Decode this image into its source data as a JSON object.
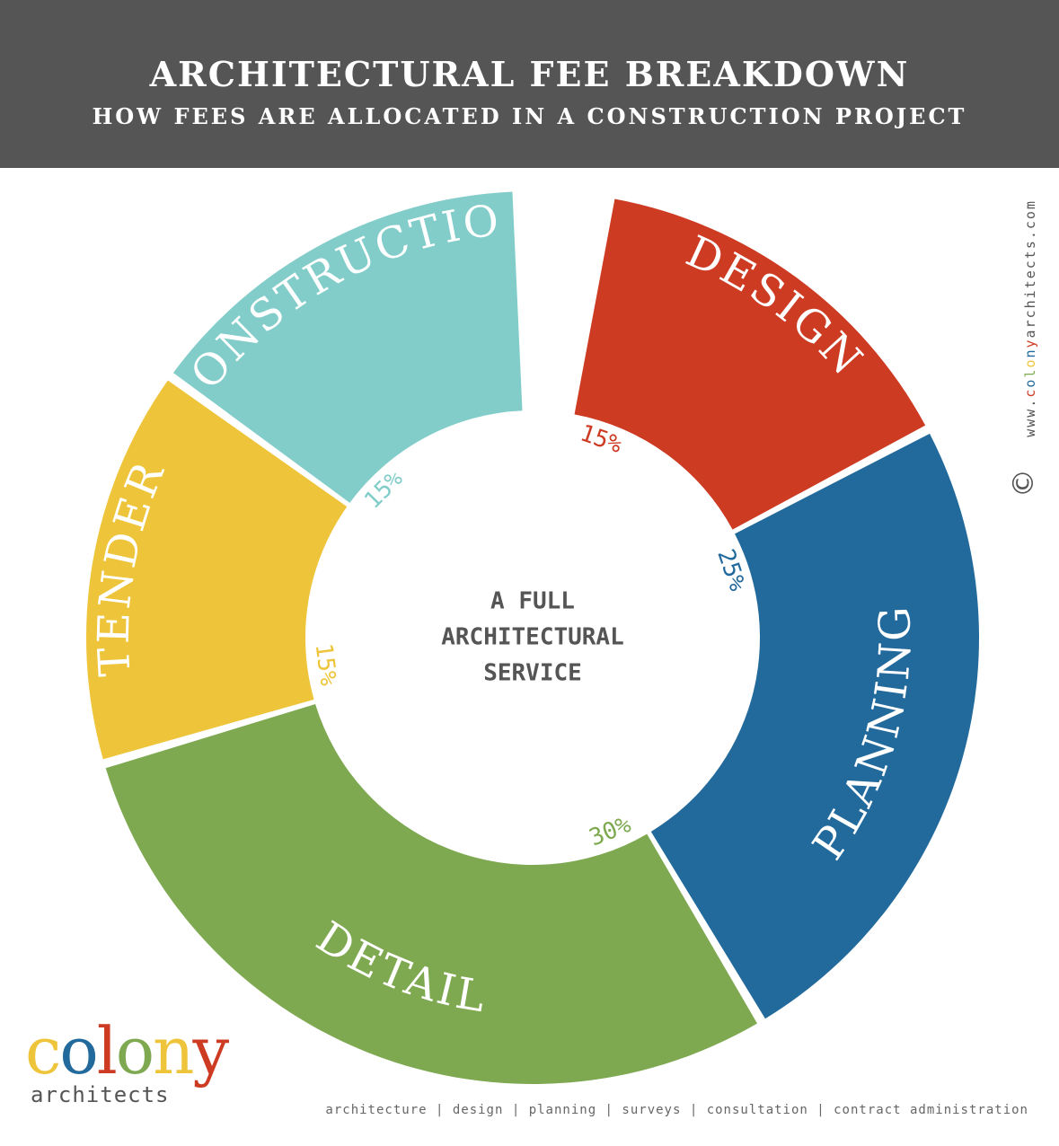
{
  "header": {
    "title": "ARCHITECTURAL FEE BREAKDOWN",
    "subtitle": "HOW FEES ARE ALLOCATED IN A CONSTRUCTION PROJECT"
  },
  "chart_data": {
    "type": "pie",
    "title": "ARCHITECTURAL FEE BREAKDOWN",
    "subtitle": "HOW FEES ARE ALLOCATED IN A CONSTRUCTION PROJECT",
    "center_label": [
      "A FULL",
      "ARCHITECTURAL",
      "SERVICE"
    ],
    "slices": [
      {
        "label": "DESIGN",
        "value": 15,
        "value_label": "15%",
        "color": "#cd3b23"
      },
      {
        "label": "PLANNING",
        "value": 25,
        "value_label": "25%",
        "color": "#236a9c"
      },
      {
        "label": "DETAIL",
        "value": 30,
        "value_label": "30%",
        "color": "#7ea951"
      },
      {
        "label": "TENDER",
        "value": 15,
        "value_label": "15%",
        "color": "#eec53a"
      },
      {
        "label": "CONSTRUCTION",
        "value": 15,
        "value_label": "15%",
        "color": "#82cdc9"
      }
    ]
  },
  "side": {
    "website_prefix": "www.",
    "website_brand": [
      "c",
      "o",
      "l",
      "o",
      "n",
      "y"
    ],
    "website_suffix": "architects.com",
    "copyright_symbol": "©"
  },
  "logo": {
    "letters": [
      "c",
      "o",
      "l",
      "o",
      "n",
      "y"
    ],
    "letter_colors": [
      "#eec53a",
      "#236a9c",
      "#cd3b23",
      "#7ea951",
      "#eec53a",
      "#cd3b23"
    ],
    "sub": "architects"
  },
  "footer": {
    "text": "architecture | design | planning | surveys | consultation | contract administration"
  }
}
